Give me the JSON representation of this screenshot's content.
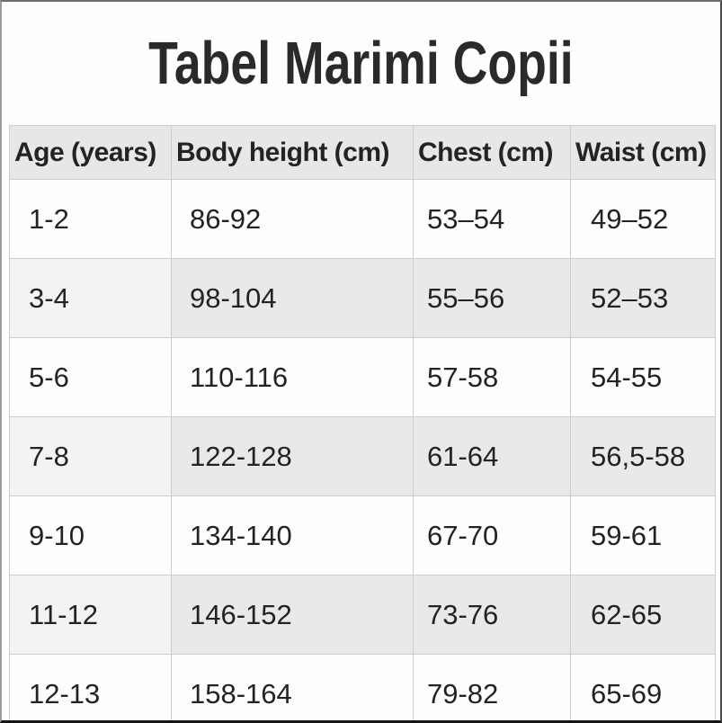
{
  "page": {
    "title": "Tabel Marimi Copii"
  },
  "table": {
    "columns": [
      "Age (years)",
      "Body height (cm)",
      "Chest (cm)",
      "Waist (cm)"
    ],
    "rows": [
      {
        "cells": [
          "1-2",
          "86-92",
          "53–54",
          "49–52"
        ]
      },
      {
        "cells": [
          "3-4",
          "98-104",
          "55–56",
          "52–53"
        ]
      },
      {
        "cells": [
          "5-6",
          "110-116",
          "57-58",
          "54-55"
        ]
      },
      {
        "cells": [
          "7-8",
          "122-128",
          "61-64",
          "56,5-58"
        ]
      },
      {
        "cells": [
          "9-10",
          "134-140",
          "67-70",
          "59-61"
        ]
      },
      {
        "cells": [
          "11-12",
          "146-152",
          "73-76",
          "62-65"
        ]
      },
      {
        "cells": [
          "12-13",
          "158-164",
          "79-82",
          "65-69"
        ]
      }
    ],
    "colors": {
      "header_bg": "#e7e7e7",
      "stripe_bg": "#e9e9e9",
      "white_row_bg": "#fdfdfd",
      "border": "#cdcdcd",
      "text": "#232323"
    }
  },
  "chart_data": {
    "type": "table",
    "title": "Tabel Marimi Copii",
    "columns": [
      "Age (years)",
      "Body height (cm)",
      "Chest (cm)",
      "Waist (cm)"
    ],
    "rows": [
      [
        "1-2",
        "86-92",
        "53–54",
        "49–52"
      ],
      [
        "3-4",
        "98-104",
        "55–56",
        "52–53"
      ],
      [
        "5-6",
        "110-116",
        "57-58",
        "54-55"
      ],
      [
        "7-8",
        "122-128",
        "61-64",
        "56,5-58"
      ],
      [
        "9-10",
        "134-140",
        "67-70",
        "59-61"
      ],
      [
        "11-12",
        "146-152",
        "73-76",
        "62-65"
      ],
      [
        "12-13",
        "158-164",
        "79-82",
        "65-69"
      ]
    ],
    "layout_hints": {
      "striped_rows": "even data rows shaded light gray",
      "header_style": "bold on light gray",
      "grid": true
    }
  }
}
